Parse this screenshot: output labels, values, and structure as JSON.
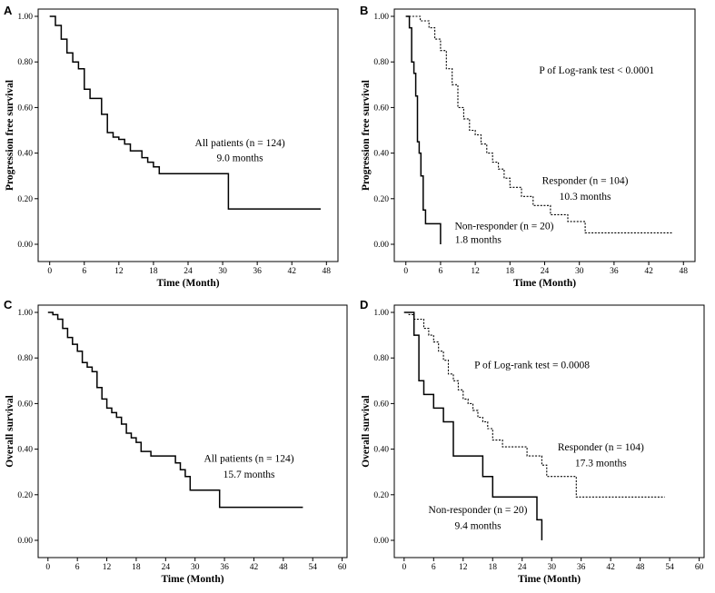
{
  "chart_data": [
    {
      "panel": "A",
      "type": "line",
      "curve": "step",
      "xlabel": "Time (Month)",
      "ylabel": "Progression free survival",
      "xticks": [
        0,
        6,
        12,
        18,
        24,
        30,
        36,
        42,
        48
      ],
      "yticks": [
        0.0,
        0.2,
        0.4,
        0.6,
        0.8,
        1.0
      ],
      "xlim": [
        -2,
        50
      ],
      "ylim": [
        0,
        1
      ],
      "series": [
        {
          "name": "All patients (n = 124)",
          "style": "solid",
          "x": [
            0,
            1,
            2,
            3,
            4,
            5,
            6,
            7,
            9,
            10,
            11,
            12,
            13,
            14,
            16,
            17,
            18,
            19,
            31,
            47
          ],
          "y": [
            1.0,
            0.96,
            0.9,
            0.84,
            0.8,
            0.77,
            0.68,
            0.64,
            0.57,
            0.49,
            0.47,
            0.46,
            0.44,
            0.41,
            0.38,
            0.36,
            0.34,
            0.31,
            0.155,
            0.155
          ]
        }
      ],
      "annotations": [
        {
          "label": "All patients (n = 124)",
          "x": 33,
          "y": 0.43
        },
        {
          "label": "9.0 months",
          "x": 33,
          "y": 0.365
        }
      ]
    },
    {
      "panel": "B",
      "type": "line",
      "curve": "step",
      "xlabel": "Time (Month)",
      "ylabel": "Progression free survival",
      "xticks": [
        0,
        6,
        12,
        18,
        24,
        30,
        36,
        42,
        48
      ],
      "yticks": [
        0.0,
        0.2,
        0.4,
        0.6,
        0.8,
        1.0
      ],
      "xlim": [
        -2,
        50
      ],
      "ylim": [
        0,
        1
      ],
      "series": [
        {
          "name": "Non-responder (n = 20)",
          "style": "solid",
          "x": [
            0,
            0.6,
            1.0,
            1.4,
            1.7,
            2.0,
            2.3,
            2.6,
            3.0,
            3.4,
            6,
            6
          ],
          "y": [
            1.0,
            0.95,
            0.8,
            0.75,
            0.65,
            0.45,
            0.4,
            0.3,
            0.15,
            0.09,
            0.09,
            0.0
          ]
        },
        {
          "name": "Responder (n = 104)",
          "style": "dashed",
          "x": [
            0,
            2.5,
            4,
            5,
            6,
            7,
            8,
            9,
            10,
            11,
            12,
            13,
            14,
            15,
            16,
            17,
            18,
            20,
            22,
            25,
            28,
            31,
            46
          ],
          "y": [
            1.0,
            0.98,
            0.95,
            0.9,
            0.85,
            0.77,
            0.7,
            0.6,
            0.55,
            0.5,
            0.48,
            0.44,
            0.4,
            0.36,
            0.33,
            0.29,
            0.25,
            0.21,
            0.17,
            0.13,
            0.1,
            0.05,
            0.05
          ]
        }
      ],
      "annotations": [
        {
          "label": "P of Log-rank test < 0.0001",
          "x": 33,
          "y": 0.75
        },
        {
          "label": "Responder (n = 104)",
          "x": 31,
          "y": 0.265
        },
        {
          "label": "10.3 months",
          "x": 31,
          "y": 0.195
        },
        {
          "label": "Non-responder (n = 20)",
          "x": 17,
          "y": 0.065
        },
        {
          "label": "1.8 months",
          "x": 12.5,
          "y": 0.005
        }
      ]
    },
    {
      "panel": "C",
      "type": "line",
      "curve": "step",
      "xlabel": "Time (Month)",
      "ylabel": "Overall survival",
      "xticks": [
        0,
        6,
        12,
        18,
        24,
        30,
        36,
        42,
        48,
        54,
        60
      ],
      "yticks": [
        0.0,
        0.2,
        0.4,
        0.6,
        0.8,
        1.0
      ],
      "xlim": [
        -2,
        61
      ],
      "ylim": [
        0,
        1
      ],
      "series": [
        {
          "name": "All patients (n = 124)",
          "style": "solid",
          "x": [
            0,
            1,
            2,
            3,
            4,
            5,
            6,
            7,
            8,
            9,
            10,
            11,
            12,
            13,
            14,
            15,
            16,
            17,
            18,
            19,
            21,
            26,
            27,
            28,
            29,
            35,
            52
          ],
          "y": [
            1.0,
            0.99,
            0.97,
            0.93,
            0.89,
            0.86,
            0.83,
            0.78,
            0.76,
            0.74,
            0.67,
            0.62,
            0.58,
            0.56,
            0.54,
            0.51,
            0.47,
            0.45,
            0.43,
            0.39,
            0.37,
            0.34,
            0.31,
            0.28,
            0.22,
            0.145,
            0.145
          ]
        }
      ],
      "annotations": [
        {
          "label": "All patients (n = 124)",
          "x": 41,
          "y": 0.345
        },
        {
          "label": "15.7 months",
          "x": 41,
          "y": 0.275
        }
      ]
    },
    {
      "panel": "D",
      "type": "line",
      "curve": "step",
      "xlabel": "Time (Month)",
      "ylabel": "Overall survival",
      "xticks": [
        0,
        6,
        12,
        18,
        24,
        30,
        36,
        42,
        48,
        54,
        60
      ],
      "yticks": [
        0.0,
        0.2,
        0.4,
        0.6,
        0.8,
        1.0
      ],
      "xlim": [
        -2,
        61
      ],
      "ylim": [
        0,
        1
      ],
      "series": [
        {
          "name": "Non-responder (n = 20)",
          "style": "solid",
          "x": [
            0,
            2,
            3,
            4,
            6,
            8,
            10,
            16,
            18,
            27,
            28,
            28
          ],
          "y": [
            1.0,
            0.9,
            0.7,
            0.64,
            0.58,
            0.52,
            0.37,
            0.28,
            0.19,
            0.09,
            0.09,
            0.0
          ]
        },
        {
          "name": "Responder (n = 104)",
          "style": "dashed",
          "x": [
            0,
            1,
            2,
            4,
            5,
            6,
            7,
            8,
            9,
            10,
            11,
            12,
            13,
            14,
            15,
            16,
            17,
            18,
            20,
            25,
            28,
            29,
            35,
            53
          ],
          "y": [
            1.0,
            0.99,
            0.97,
            0.93,
            0.9,
            0.87,
            0.83,
            0.79,
            0.73,
            0.7,
            0.66,
            0.62,
            0.6,
            0.57,
            0.54,
            0.52,
            0.49,
            0.44,
            0.41,
            0.37,
            0.33,
            0.28,
            0.19,
            0.19
          ]
        }
      ],
      "annotations": [
        {
          "label": "P of Log-rank test = 0.0008",
          "x": 26,
          "y": 0.755
        },
        {
          "label": "Responder (n = 104)",
          "x": 40,
          "y": 0.395
        },
        {
          "label": "17.3 months",
          "x": 40,
          "y": 0.325
        },
        {
          "label": "Non-responder (n = 20)",
          "x": 15,
          "y": 0.12
        },
        {
          "label": "9.4 months",
          "x": 15,
          "y": 0.05
        }
      ]
    }
  ],
  "panels": {
    "a": {
      "letter": "A"
    },
    "b": {
      "letter": "B"
    },
    "c": {
      "letter": "C"
    },
    "d": {
      "letter": "D"
    }
  }
}
